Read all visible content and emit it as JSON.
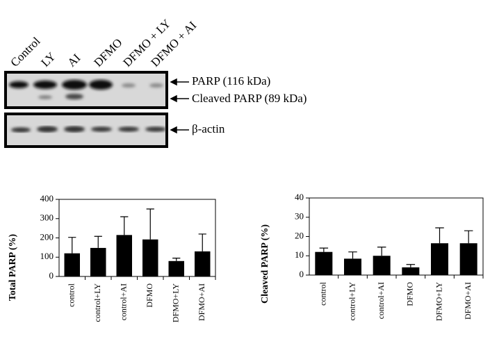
{
  "blot": {
    "lanes": [
      "Control",
      "LY",
      "AI",
      "DFMO",
      "DFMO + LY",
      "DFMO + AI"
    ],
    "labels": [
      "PARP (116 kDa)",
      "Cleaved PARP (89 kDa)",
      "β-actin"
    ]
  },
  "chart_data": [
    {
      "type": "bar",
      "y_label": "Total PARP (%)",
      "categories": [
        "control",
        "control+LY",
        "control+AI",
        "DFMO",
        "DFMO+LY",
        "DFMO+AI"
      ],
      "values": [
        120,
        148,
        215,
        192,
        80,
        130
      ],
      "errors": [
        83,
        60,
        95,
        158,
        15,
        90
      ],
      "color": "#000000",
      "ylim": [
        0,
        400
      ],
      "yticks": [
        0,
        100,
        200,
        300,
        400
      ]
    },
    {
      "type": "bar",
      "y_label": "Cleaved PARP (%)",
      "categories": [
        "control",
        "control+LY",
        "control+AI",
        "DFMO",
        "DFMO+LY",
        "DFMO+AI"
      ],
      "values": [
        12,
        8.5,
        10,
        4,
        16.5,
        16.5
      ],
      "errors": [
        2,
        3.5,
        4.5,
        1.5,
        8,
        6.5
      ],
      "color": "#000000",
      "ylim": [
        0,
        40
      ],
      "yticks": [
        0,
        10,
        20,
        30,
        40
      ]
    }
  ]
}
